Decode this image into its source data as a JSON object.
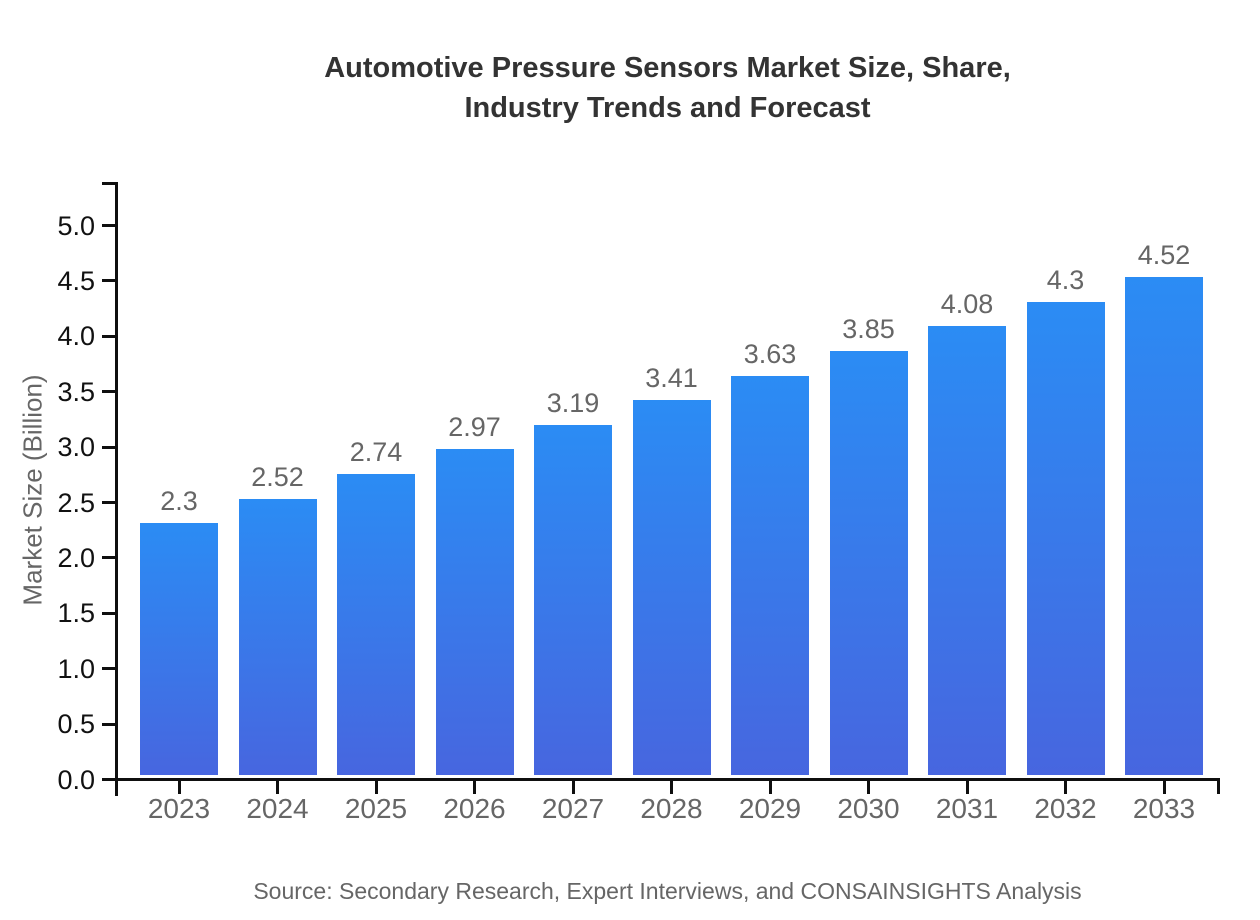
{
  "chart_data": {
    "type": "bar",
    "title": "Automotive Pressure Sensors Market Size, Share, Industry Trends and Forecast",
    "title_lines": [
      "Automotive Pressure Sensors Market Size, Share,",
      "Industry Trends and Forecast"
    ],
    "categories": [
      "2023",
      "2024",
      "2025",
      "2026",
      "2027",
      "2028",
      "2029",
      "2030",
      "2031",
      "2032",
      "2033"
    ],
    "values": [
      2.3,
      2.52,
      2.74,
      2.97,
      3.19,
      3.41,
      3.63,
      3.85,
      4.08,
      4.3,
      4.52
    ],
    "value_labels": [
      "2.3",
      "2.52",
      "2.74",
      "2.97",
      "3.19",
      "3.41",
      "3.63",
      "3.85",
      "4.08",
      "4.3",
      "4.52"
    ],
    "xlabel": "",
    "ylabel": "Market Size (Billion)",
    "ylim": [
      0,
      5
    ],
    "yticks": [
      0,
      0.5,
      1,
      1.5,
      2,
      2.5,
      3,
      3.5,
      4,
      4.5,
      5
    ],
    "ytick_labels": [
      "0.0",
      "0.5",
      "1.0",
      "1.5",
      "2.0",
      "2.5",
      "3.0",
      "3.5",
      "4.0",
      "4.5",
      "5.0"
    ],
    "grid": false,
    "legend": "none",
    "bar_gradient": {
      "top": "#2b8cf4",
      "bottom": "#4766df"
    },
    "axis_color": "#0f0f0f",
    "text_colors": {
      "title": "#333333",
      "muted": "#666666",
      "ytick": "#111111"
    },
    "source": "Source: Secondary Research, Expert Interviews, and CONSAINSIGHTS Analysis"
  }
}
